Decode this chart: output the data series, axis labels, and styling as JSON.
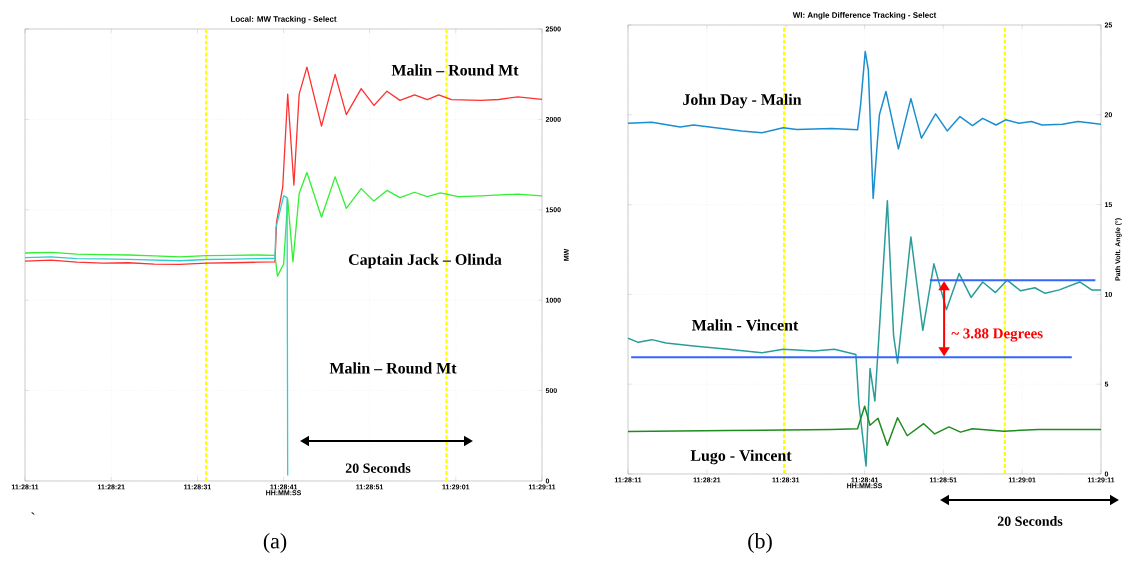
{
  "chart_data": [
    {
      "type": "line",
      "title": "Local: MW Tracking - Select",
      "xlabel": "HH:MM:SS",
      "ylabel": "MW",
      "xlim": [
        11.46972,
        11.48639
      ],
      "ylim": [
        0,
        2500
      ],
      "xticks": [
        {
          "value": 11.46972,
          "label": "11:28:11"
        },
        {
          "value": 11.4725,
          "label": "11:28:21"
        },
        {
          "value": 11.47528,
          "label": "11:28:31"
        },
        {
          "value": 11.47806,
          "label": "11:28:41"
        },
        {
          "value": 11.48083,
          "label": "11:28:51"
        },
        {
          "value": 11.48361,
          "label": "11:29:01"
        },
        {
          "value": 11.48639,
          "label": "11:29:11"
        }
      ],
      "yticks": [
        0,
        500,
        1000,
        1500,
        2000,
        2500
      ],
      "grid": true,
      "series": [
        {
          "name": "Malin – Round Mt",
          "color": "#ff3030",
          "x": [
            11.46972,
            11.47056,
            11.47139,
            11.47222,
            11.47306,
            11.47389,
            11.47472,
            11.47556,
            11.47639,
            11.47722,
            11.47778,
            11.47783,
            11.47803,
            11.47819,
            11.47839,
            11.47856,
            11.47881,
            11.47928,
            11.47972,
            11.48008,
            11.48056,
            11.48097,
            11.48139,
            11.48181,
            11.48228,
            11.48269,
            11.48306,
            11.48347,
            11.48442,
            11.485,
            11.48561,
            11.48639
          ],
          "values": [
            1216,
            1222,
            1210,
            1205,
            1207,
            1200,
            1198,
            1205,
            1207,
            1210,
            1212,
            1430,
            1627,
            2140,
            1637,
            2140,
            2289,
            1963,
            2249,
            2026,
            2170,
            2077,
            2156,
            2105,
            2136,
            2109,
            2136,
            2109,
            2105,
            2110,
            2125,
            2111
          ]
        },
        {
          "name": "Captain Jack – Olinda",
          "color": "#33ee33",
          "x": [
            11.46972,
            11.47056,
            11.47139,
            11.47222,
            11.47306,
            11.47389,
            11.47472,
            11.47556,
            11.47639,
            11.47722,
            11.47778,
            11.47786,
            11.47806,
            11.47819,
            11.47836,
            11.47856,
            11.47881,
            11.47928,
            11.47972,
            11.48008,
            11.48056,
            11.48097,
            11.48139,
            11.48181,
            11.48228,
            11.48269,
            11.48311,
            11.48369,
            11.48442,
            11.48561,
            11.48639
          ],
          "values": [
            1261,
            1265,
            1255,
            1252,
            1250,
            1245,
            1240,
            1247,
            1248,
            1250,
            1248,
            1133,
            1200,
            1560,
            1212,
            1590,
            1706,
            1459,
            1682,
            1508,
            1617,
            1548,
            1607,
            1567,
            1597,
            1573,
            1593,
            1573,
            1577,
            1587,
            1577
          ]
        },
        {
          "name": "Malin – Round Mt",
          "color": "#33cccc",
          "x": [
            11.46972,
            11.47056,
            11.47139,
            11.47222,
            11.47306,
            11.47389,
            11.47472,
            11.47556,
            11.47639,
            11.47722,
            11.47778,
            11.47781,
            11.47806,
            11.47817,
            11.47819
          ],
          "values": [
            1235,
            1240,
            1230,
            1228,
            1226,
            1222,
            1218,
            1225,
            1227,
            1230,
            1232,
            1400,
            1577,
            1567,
            30
          ]
        }
      ],
      "ref_lines": [
        {
          "axis": "x",
          "value": 11.47556,
          "color": "#ffff00",
          "line_style": "dashed"
        },
        {
          "axis": "x",
          "value": 11.48331,
          "color": "#ffff00",
          "line_style": "dashed"
        }
      ],
      "annotations": [
        "20 Seconds",
        "(a)",
        "`"
      ]
    },
    {
      "type": "line",
      "title": "WI: Angle Difference Tracking - Select",
      "xlabel": "HH:MM:SS",
      "ylabel": "Path Volt. Angle (°)",
      "xlim": [
        11.46972,
        11.48639
      ],
      "ylim": [
        0,
        25
      ],
      "xticks": [
        {
          "value": 11.46972,
          "label": "11:28:11"
        },
        {
          "value": 11.4725,
          "label": "11:28:21"
        },
        {
          "value": 11.47528,
          "label": "11:28:31"
        },
        {
          "value": 11.47806,
          "label": "11:28:41"
        },
        {
          "value": 11.48083,
          "label": "11:28:51"
        },
        {
          "value": 11.48361,
          "label": "11:29:01"
        },
        {
          "value": 11.48639,
          "label": "11:29:11"
        }
      ],
      "yticks": [
        0,
        5,
        10,
        15,
        20,
        25
      ],
      "grid": true,
      "series": [
        {
          "name": "John Day - Malin",
          "color": "#1a8fd0",
          "x": [
            11.46972,
            11.47056,
            11.47156,
            11.47203,
            11.47372,
            11.47444,
            11.47519,
            11.47567,
            11.47689,
            11.47781,
            11.47792,
            11.47808,
            11.47819,
            11.47836,
            11.47858,
            11.47881,
            11.47925,
            11.47969,
            11.48006,
            11.48056,
            11.48097,
            11.48142,
            11.48186,
            11.48222,
            11.48269,
            11.48303,
            11.4835,
            11.48394,
            11.48431,
            11.48503,
            11.48558,
            11.48639
          ],
          "values": [
            19.53,
            19.59,
            19.32,
            19.43,
            19.1,
            19.0,
            19.28,
            19.18,
            19.24,
            19.16,
            20.6,
            23.53,
            22.5,
            15.34,
            20.0,
            21.3,
            18.1,
            20.9,
            18.7,
            20.05,
            19.1,
            19.9,
            19.4,
            19.8,
            19.43,
            19.72,
            19.53,
            19.63,
            19.43,
            19.47,
            19.63,
            19.47
          ]
        },
        {
          "name": "Malin - Vincent",
          "color": "#2a9d9a",
          "x": [
            11.46972,
            11.47008,
            11.47056,
            11.47106,
            11.47203,
            11.47325,
            11.47444,
            11.47519,
            11.47628,
            11.477,
            11.47775,
            11.47786,
            11.47811,
            11.47825,
            11.47842,
            11.47864,
            11.47886,
            11.47908,
            11.47922,
            11.47969,
            11.48011,
            11.4805,
            11.48094,
            11.48139,
            11.48181,
            11.48222,
            11.48267,
            11.48308,
            11.48356,
            11.48406,
            11.48442,
            11.48492,
            11.48564,
            11.48606,
            11.48639
          ],
          "values": [
            7.56,
            7.33,
            7.48,
            7.29,
            7.13,
            6.94,
            6.75,
            6.94,
            6.85,
            6.94,
            6.65,
            3.87,
            0.44,
            5.88,
            4.06,
            9.6,
            15.22,
            7.7,
            6.17,
            13.2,
            8.0,
            11.7,
            9.15,
            11.16,
            9.83,
            10.69,
            10.1,
            10.79,
            10.2,
            10.37,
            10.06,
            10.25,
            10.69,
            10.25,
            10.25
          ]
        },
        {
          "name": "Lugo - Vincent",
          "color": "#1e8c1e",
          "x": [
            11.46972,
            11.47325,
            11.47689,
            11.47781,
            11.47806,
            11.47825,
            11.47853,
            11.47886,
            11.47922,
            11.47956,
            11.48014,
            11.48053,
            11.48103,
            11.48144,
            11.48186,
            11.48297,
            11.48417,
            11.48639
          ],
          "values": [
            2.37,
            2.42,
            2.48,
            2.52,
            3.77,
            2.71,
            3.1,
            1.6,
            3.13,
            2.13,
            2.8,
            2.23,
            2.62,
            2.33,
            2.52,
            2.38,
            2.48,
            2.48
          ]
        },
        {
          "color": "#3366ff",
          "x": [
            11.48036,
            11.48619
          ],
          "values": [
            10.79,
            10.79
          ]
        },
        {
          "color": "#3366ff",
          "x": [
            11.46983,
            11.48536
          ],
          "values": [
            6.5,
            6.5
          ]
        }
      ],
      "ref_lines": [
        {
          "axis": "x",
          "value": 11.47522,
          "color": "#ffff00",
          "line_style": "dashed"
        },
        {
          "axis": "x",
          "value": 11.483,
          "color": "#ffff00",
          "line_style": "dashed"
        }
      ],
      "annotations": [
        {
          "text": "~ 3.88 Degrees",
          "x": 11.48086,
          "y": 6.5
        },
        "20 Seconds",
        "(b)"
      ]
    }
  ]
}
